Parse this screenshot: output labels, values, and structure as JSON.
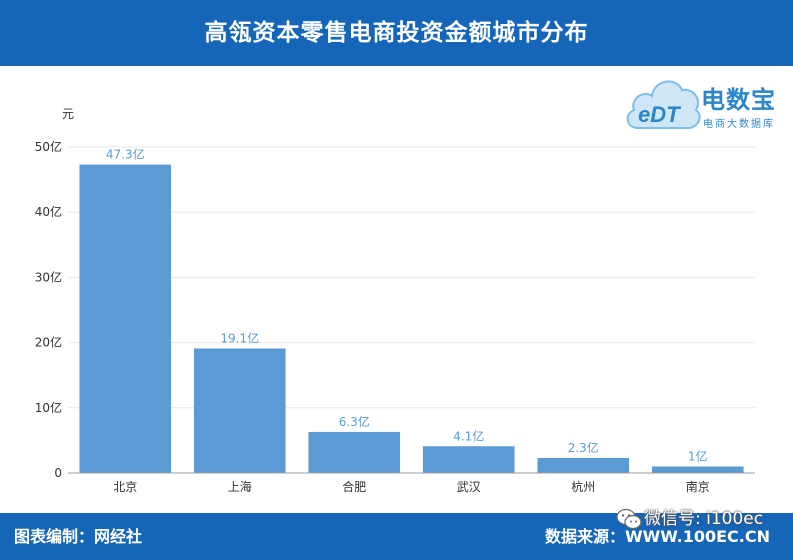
{
  "header": {
    "title": "高瓴资本零售电商投资金额城市分布"
  },
  "logo": {
    "name": "电数宝",
    "subtitle": "电商大数据库",
    "mark": "eDT"
  },
  "chart_data": {
    "type": "bar",
    "ylabel": "元",
    "ylim": [
      0,
      50
    ],
    "yticks": [
      "0",
      "10亿",
      "20亿",
      "30亿",
      "40亿",
      "50亿"
    ],
    "categories": [
      "北京",
      "上海",
      "合肥",
      "武汉",
      "杭州",
      "南京"
    ],
    "values": [
      47.3,
      19.1,
      6.3,
      4.1,
      2.3,
      1
    ],
    "labels": [
      "47.3亿",
      "19.1亿",
      "6.3亿",
      "4.1亿",
      "2.3亿",
      "1亿"
    ],
    "grid": true,
    "bar_color": "#5b9bd5",
    "label_color": "#5b9bd5"
  },
  "footer": {
    "left": "图表编制：网经社",
    "right": "数据来源：WWW.100EC.CN"
  },
  "watermark": {
    "text": "微信号: i100ec"
  }
}
